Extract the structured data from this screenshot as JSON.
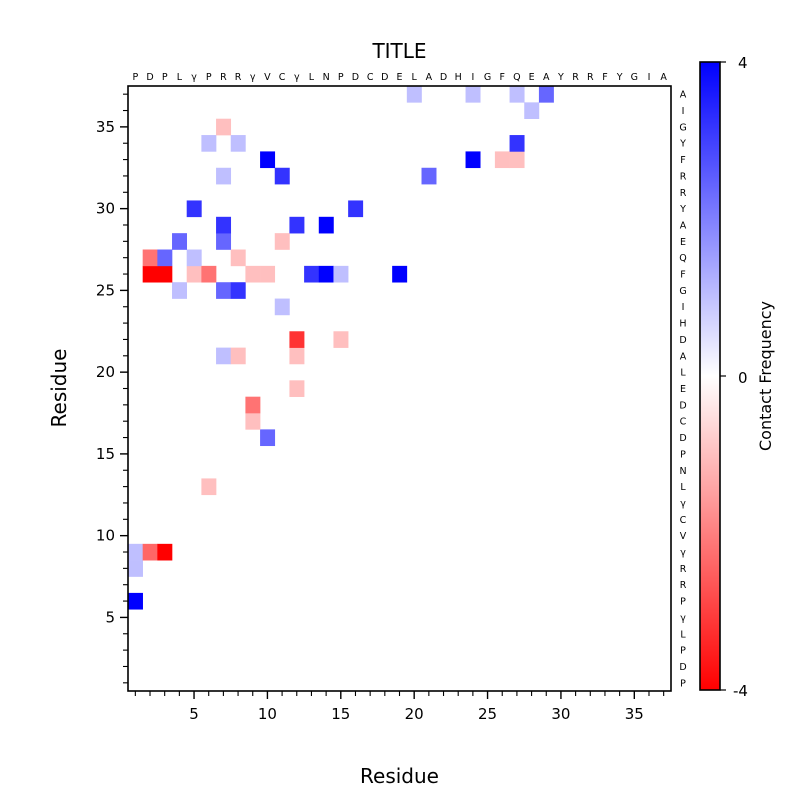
{
  "chart_data": {
    "type": "heatmap",
    "title": "TITLE",
    "xlabel": "Residue",
    "ylabel": "Residue",
    "xlim": [
      0.5,
      37.5
    ],
    "ylim": [
      0.5,
      37.5
    ],
    "x_ticks": [
      5,
      10,
      15,
      20,
      25,
      30,
      35
    ],
    "y_ticks": [
      5,
      10,
      15,
      20,
      25,
      30,
      35
    ],
    "sequence": [
      "P",
      "D",
      "P",
      "L",
      "γ",
      "P",
      "R",
      "R",
      "γ",
      "V",
      "C",
      "γ",
      "L",
      "N",
      "P",
      "D",
      "C",
      "D",
      "E",
      "L",
      "A",
      "D",
      "H",
      "I",
      "G",
      "F",
      "Q",
      "E",
      "A",
      "Y",
      "R",
      "R",
      "F",
      "Y",
      "G",
      "I",
      "A"
    ],
    "colorbar": {
      "label": "Contact Frequency",
      "min": -4,
      "max": 4,
      "tick_labels": [
        "4",
        "0",
        "-4"
      ],
      "colors": {
        "low": "#ff0000",
        "mid": "#ffffff",
        "high": "#0000ff"
      }
    },
    "cells": [
      {
        "x": 1,
        "y": 6,
        "v": 4
      },
      {
        "x": 1,
        "y": 8,
        "v": 1
      },
      {
        "x": 1,
        "y": 9,
        "v": 1
      },
      {
        "x": 2,
        "y": 9,
        "v": -2.4
      },
      {
        "x": 3,
        "y": 9,
        "v": -4
      },
      {
        "x": 6,
        "y": 13,
        "v": -1
      },
      {
        "x": 10,
        "y": 16,
        "v": 2.4
      },
      {
        "x": 9,
        "y": 17,
        "v": -1
      },
      {
        "x": 9,
        "y": 18,
        "v": -2.2
      },
      {
        "x": 12,
        "y": 19,
        "v": -1
      },
      {
        "x": 7,
        "y": 21,
        "v": 1
      },
      {
        "x": 8,
        "y": 21,
        "v": -1
      },
      {
        "x": 12,
        "y": 21,
        "v": -1
      },
      {
        "x": 12,
        "y": 22,
        "v": -3.2
      },
      {
        "x": 15,
        "y": 22,
        "v": -1
      },
      {
        "x": 11,
        "y": 24,
        "v": 1
      },
      {
        "x": 4,
        "y": 25,
        "v": 1
      },
      {
        "x": 7,
        "y": 25,
        "v": 2.4
      },
      {
        "x": 8,
        "y": 25,
        "v": 3.2
      },
      {
        "x": 2,
        "y": 26,
        "v": -4
      },
      {
        "x": 3,
        "y": 26,
        "v": -4
      },
      {
        "x": 5,
        "y": 26,
        "v": -1
      },
      {
        "x": 6,
        "y": 26,
        "v": -2.2
      },
      {
        "x": 9,
        "y": 26,
        "v": -1
      },
      {
        "x": 10,
        "y": 26,
        "v": -1
      },
      {
        "x": 13,
        "y": 26,
        "v": 3.2
      },
      {
        "x": 14,
        "y": 26,
        "v": 4
      },
      {
        "x": 15,
        "y": 26,
        "v": 1
      },
      {
        "x": 19,
        "y": 26,
        "v": 4
      },
      {
        "x": 2,
        "y": 27,
        "v": -2.2
      },
      {
        "x": 3,
        "y": 27,
        "v": 2.4
      },
      {
        "x": 5,
        "y": 27,
        "v": 1
      },
      {
        "x": 8,
        "y": 27,
        "v": -1
      },
      {
        "x": 4,
        "y": 28,
        "v": 2.4
      },
      {
        "x": 7,
        "y": 28,
        "v": 2.4
      },
      {
        "x": 11,
        "y": 28,
        "v": -1
      },
      {
        "x": 7,
        "y": 29,
        "v": 3.2
      },
      {
        "x": 12,
        "y": 29,
        "v": 3.2
      },
      {
        "x": 14,
        "y": 29,
        "v": 4
      },
      {
        "x": 5,
        "y": 30,
        "v": 3.2
      },
      {
        "x": 16,
        "y": 30,
        "v": 3.2
      },
      {
        "x": 7,
        "y": 32,
        "v": 1
      },
      {
        "x": 11,
        "y": 32,
        "v": 3.2
      },
      {
        "x": 21,
        "y": 32,
        "v": 2.4
      },
      {
        "x": 10,
        "y": 33,
        "v": 4
      },
      {
        "x": 24,
        "y": 33,
        "v": 4
      },
      {
        "x": 26,
        "y": 33,
        "v": -1
      },
      {
        "x": 27,
        "y": 33,
        "v": -1
      },
      {
        "x": 6,
        "y": 34,
        "v": 1
      },
      {
        "x": 8,
        "y": 34,
        "v": 1
      },
      {
        "x": 27,
        "y": 34,
        "v": 3.2
      },
      {
        "x": 7,
        "y": 35,
        "v": -1
      },
      {
        "x": 28,
        "y": 36,
        "v": 1
      },
      {
        "x": 20,
        "y": 37,
        "v": 1
      },
      {
        "x": 24,
        "y": 37,
        "v": 1
      },
      {
        "x": 27,
        "y": 37,
        "v": 1
      },
      {
        "x": 29,
        "y": 37,
        "v": 2.4
      }
    ]
  }
}
